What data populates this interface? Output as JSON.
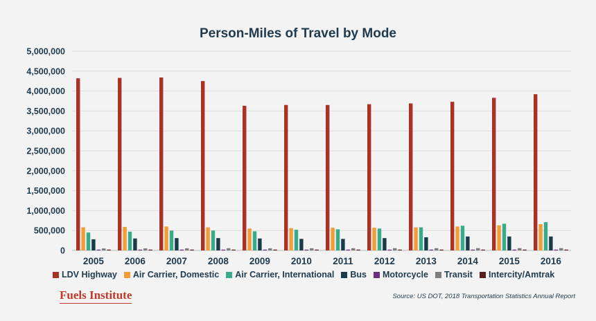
{
  "chart_data": {
    "type": "bar",
    "title": "Person-Miles of Travel by Mode",
    "xlabel": "",
    "ylabel": "",
    "ylim": [
      0,
      5000000
    ],
    "y_ticks": [
      "0",
      "500,000",
      "1,000,000",
      "1,500,000",
      "2,000,000",
      "2,500,000",
      "3,000,000",
      "3,500,000",
      "4,000,000",
      "4,500,000",
      "5,000,000"
    ],
    "y_tick_values": [
      0,
      500000,
      1000000,
      1500000,
      2000000,
      2500000,
      3000000,
      3500000,
      4000000,
      4500000,
      5000000
    ],
    "grid": true,
    "legend_position": "bottom",
    "categories": [
      "2005",
      "2006",
      "2007",
      "2008",
      "2009",
      "2010",
      "2011",
      "2012",
      "2013",
      "2014",
      "2015",
      "2016"
    ],
    "series": [
      {
        "name": "LDV Highway",
        "color": "#a93226",
        "values": [
          4320000,
          4330000,
          4340000,
          4250000,
          3630000,
          3650000,
          3650000,
          3670000,
          3690000,
          3730000,
          3830000,
          3920000
        ]
      },
      {
        "name": "Air Carrier, Domestic",
        "color": "#f39c38",
        "values": [
          580000,
          590000,
          600000,
          580000,
          550000,
          560000,
          570000,
          570000,
          580000,
          600000,
          630000,
          660000
        ]
      },
      {
        "name": "Air Carrier, International",
        "color": "#3aaa8c",
        "values": [
          450000,
          470000,
          500000,
          500000,
          480000,
          520000,
          530000,
          550000,
          580000,
          620000,
          670000,
          710000
        ]
      },
      {
        "name": "Bus",
        "color": "#1b3a4b",
        "values": [
          280000,
          300000,
          310000,
          310000,
          300000,
          290000,
          290000,
          310000,
          330000,
          350000,
          350000,
          350000
        ]
      },
      {
        "name": "Motorcycle",
        "color": "#6b2d82",
        "values": [
          10000,
          12000,
          14000,
          15000,
          15000,
          15000,
          15000,
          15000,
          15000,
          15000,
          15000,
          15000
        ]
      },
      {
        "name": "Transit",
        "color": "#7f7f7f",
        "values": [
          50000,
          52000,
          54000,
          56000,
          55000,
          55000,
          56000,
          57000,
          57000,
          58000,
          58000,
          58000
        ]
      },
      {
        "name": "Intercity/Amtrak",
        "color": "#5c1d1d",
        "values": [
          6000,
          6000,
          6000,
          7000,
          7000,
          7000,
          7000,
          7000,
          7000,
          7000,
          7000,
          7000
        ]
      }
    ]
  },
  "branding": {
    "logo_text": "Fuels Institute"
  },
  "source_note": "Source:  US DOT, 2018 Transportation Statistics Annual Report"
}
